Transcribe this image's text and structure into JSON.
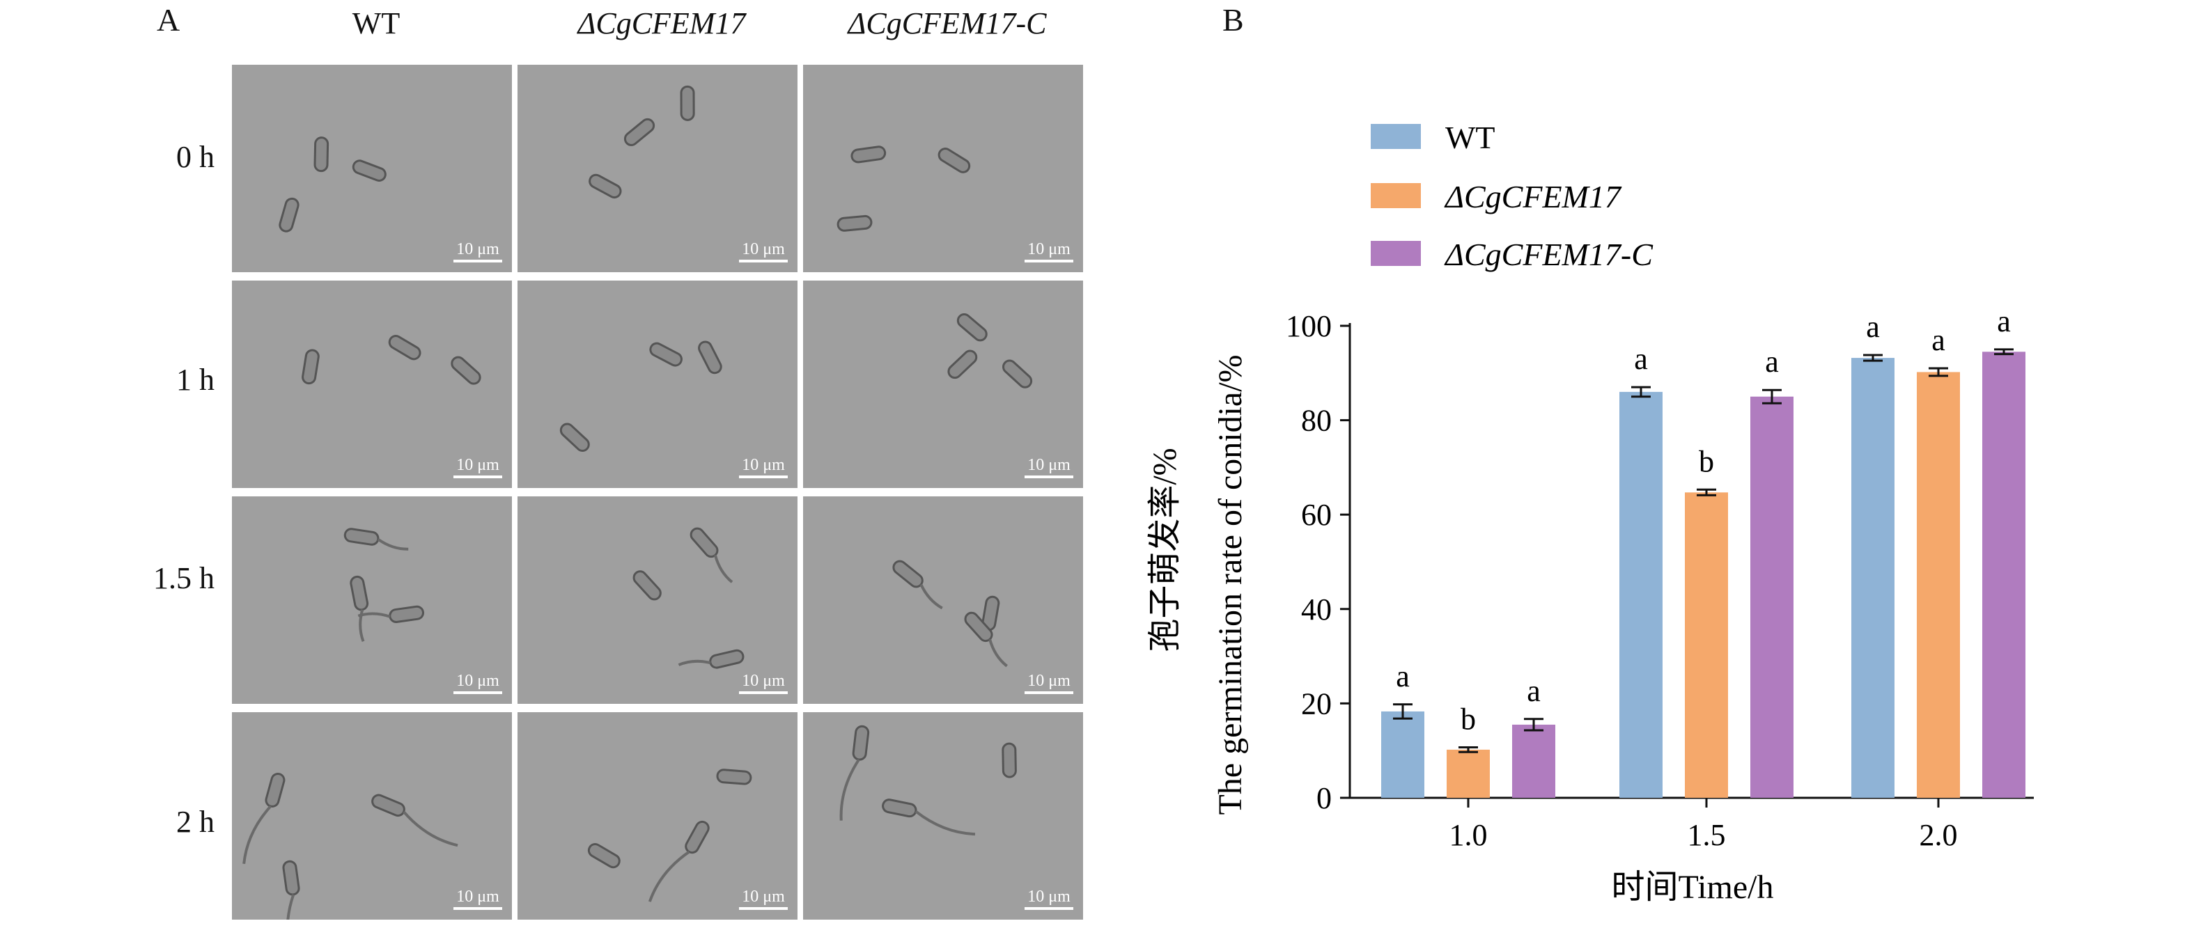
{
  "panel_a": {
    "letter": "A",
    "columns": [
      "WT",
      "ΔCgCFEM17",
      "ΔCgCFEM17-C"
    ],
    "rows": [
      "0 h",
      "1 h",
      "1.5 h",
      "2 h"
    ],
    "scale_bar": "10 μm",
    "tile_color": "#9f9f9f"
  },
  "panel_b": {
    "letter": "B"
  },
  "chart_data": {
    "type": "bar",
    "categories": [
      "1.0",
      "1.5",
      "2.0"
    ],
    "series": [
      {
        "name": "WT",
        "color": "#8fb3d6",
        "values": [
          18.3,
          86.0,
          93.2
        ],
        "errors": [
          1.5,
          1.0,
          0.6
        ],
        "letters": [
          "a",
          "a",
          "a"
        ]
      },
      {
        "name": "ΔCgCFEM17",
        "color": "#f5a86b",
        "values": [
          10.2,
          64.7,
          90.2
        ],
        "errors": [
          0.5,
          0.6,
          0.8
        ],
        "letters": [
          "b",
          "b",
          "a"
        ]
      },
      {
        "name": "ΔCgCFEM17-C",
        "color": "#b07cbf",
        "values": [
          15.5,
          85.0,
          94.5
        ],
        "errors": [
          1.2,
          1.4,
          0.5
        ],
        "letters": [
          "a",
          "a",
          "a"
        ]
      }
    ],
    "ylabel_cn": "孢子萌发率/%",
    "ylabel_en": "The germination rate of conidia/%",
    "xlabel": "时间Time/h",
    "ylim": [
      0,
      100
    ],
    "yticks": [
      0,
      20,
      40,
      60,
      80,
      100
    ],
    "legend_position": "top-left"
  }
}
